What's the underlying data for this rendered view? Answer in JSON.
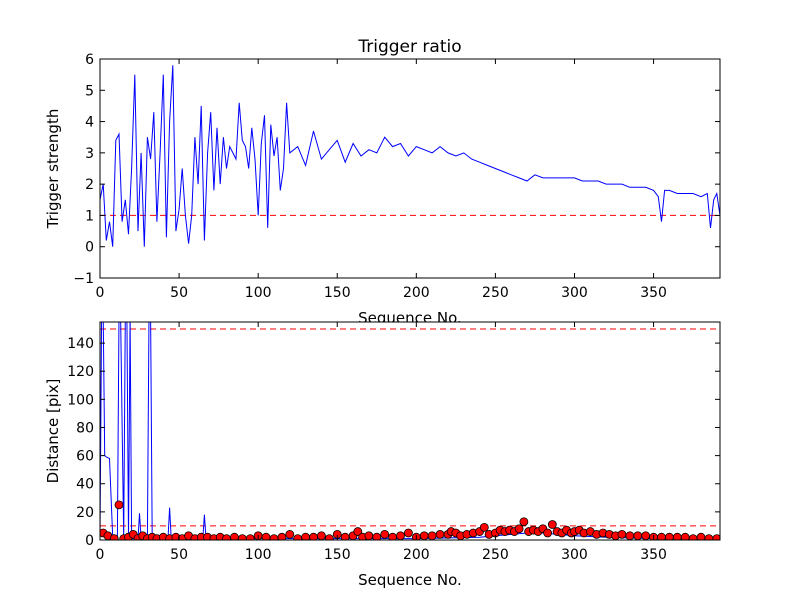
{
  "chart_data": [
    {
      "type": "line",
      "title": "Trigger ratio",
      "xlabel": "Sequence No.",
      "ylabel": "Trigger strength",
      "xlim": [
        0,
        392
      ],
      "ylim": [
        -1,
        6
      ],
      "xticks": [
        "0",
        "50",
        "100",
        "150",
        "200",
        "250",
        "300",
        "350"
      ],
      "yticks": [
        "−1",
        "0",
        "1",
        "2",
        "3",
        "4",
        "5",
        "6"
      ],
      "grid": false,
      "reference_lines": [
        {
          "y": 1,
          "color": "#ff0000",
          "style": "dashed"
        }
      ],
      "series": [
        {
          "color": "#0000ff",
          "x": [
            0,
            2,
            4,
            6,
            8,
            10,
            12,
            14,
            16,
            18,
            20,
            22,
            24,
            26,
            28,
            30,
            32,
            34,
            36,
            38,
            40,
            42,
            44,
            46,
            48,
            50,
            52,
            54,
            56,
            58,
            60,
            62,
            64,
            66,
            68,
            70,
            72,
            74,
            76,
            78,
            80,
            82,
            84,
            86,
            88,
            90,
            92,
            94,
            96,
            98,
            100,
            102,
            104,
            106,
            108,
            110,
            112,
            114,
            116,
            118,
            120,
            125,
            130,
            135,
            140,
            145,
            150,
            155,
            160,
            165,
            170,
            175,
            180,
            185,
            190,
            195,
            200,
            205,
            210,
            215,
            220,
            225,
            230,
            235,
            240,
            245,
            250,
            255,
            260,
            265,
            270,
            275,
            280,
            285,
            290,
            295,
            300,
            305,
            310,
            315,
            320,
            325,
            330,
            335,
            340,
            345,
            350,
            353,
            355,
            357,
            360,
            365,
            370,
            375,
            380,
            384,
            386,
            388,
            390,
            392
          ],
          "values": [
            1.5,
            2.0,
            0.2,
            0.8,
            0.0,
            3.4,
            3.6,
            0.8,
            1.5,
            0.4,
            2.5,
            5.5,
            0.5,
            3.0,
            0.0,
            3.5,
            2.8,
            4.3,
            0.8,
            3.0,
            5.5,
            0.3,
            4.0,
            5.8,
            0.5,
            1.2,
            2.5,
            1.0,
            0.1,
            1.0,
            3.5,
            2.0,
            4.5,
            0.2,
            3.0,
            4.3,
            1.8,
            3.8,
            2.0,
            3.5,
            2.5,
            3.2,
            3.0,
            2.8,
            4.6,
            3.4,
            3.2,
            2.5,
            3.8,
            2.8,
            1.0,
            3.3,
            4.2,
            0.6,
            3.9,
            2.9,
            3.5,
            1.8,
            2.5,
            4.6,
            3.0,
            3.2,
            2.6,
            3.7,
            2.8,
            3.1,
            3.4,
            2.7,
            3.3,
            2.9,
            3.1,
            3.0,
            3.5,
            3.2,
            3.3,
            2.9,
            3.2,
            3.1,
            3.0,
            3.2,
            3.0,
            2.9,
            3.0,
            2.8,
            2.7,
            2.6,
            2.5,
            2.4,
            2.3,
            2.2,
            2.1,
            2.3,
            2.2,
            2.2,
            2.2,
            2.2,
            2.2,
            2.1,
            2.1,
            2.1,
            2.0,
            2.0,
            2.0,
            1.9,
            1.9,
            1.9,
            1.8,
            1.6,
            0.8,
            1.8,
            1.8,
            1.7,
            1.7,
            1.7,
            1.6,
            1.7,
            0.6,
            1.5,
            1.7,
            1.0
          ]
        }
      ]
    },
    {
      "type": "line",
      "xlabel": "Sequence No.",
      "ylabel": "Distance [pix]",
      "xlim": [
        0,
        392
      ],
      "ylim": [
        0,
        155
      ],
      "xticks": [
        "0",
        "50",
        "100",
        "150",
        "200",
        "250",
        "300",
        "350"
      ],
      "yticks": [
        "0",
        "20",
        "40",
        "60",
        "80",
        "100",
        "120",
        "140"
      ],
      "grid": false,
      "reference_lines": [
        {
          "y": 10,
          "color": "#ff0000",
          "style": "dashed"
        },
        {
          "y": 150,
          "color": "#ff0000",
          "style": "dashed"
        }
      ],
      "series": [
        {
          "type": "line",
          "color": "#0000ff",
          "x": [
            0,
            1,
            2,
            3,
            4,
            6,
            8,
            9,
            10,
            11,
            12,
            13,
            15,
            16,
            17,
            18,
            19,
            20,
            24,
            25,
            26,
            30,
            31,
            32,
            33,
            35,
            43,
            44,
            45,
            46,
            65,
            66,
            67,
            68,
            80,
            100,
            150,
            200,
            240,
            250,
            260,
            270,
            280,
            290,
            300,
            320,
            350,
            392
          ],
          "values": [
            1,
            160,
            160,
            60,
            59,
            58,
            2,
            1,
            1,
            2,
            160,
            160,
            1,
            160,
            160,
            1,
            160,
            1,
            1,
            19,
            1,
            1,
            160,
            160,
            1,
            1,
            1,
            23,
            1,
            1,
            1,
            18,
            1,
            1,
            1,
            1,
            1,
            1,
            2,
            3,
            4,
            5,
            5,
            4,
            3,
            2,
            1,
            1
          ]
        },
        {
          "type": "scatter",
          "color": "#ff0000",
          "marker": "circle",
          "x": [
            2,
            5,
            9,
            12,
            15,
            18,
            21,
            24,
            27,
            30,
            33,
            36,
            40,
            44,
            48,
            52,
            56,
            60,
            64,
            68,
            72,
            76,
            80,
            85,
            90,
            95,
            100,
            105,
            110,
            115,
            120,
            125,
            130,
            135,
            140,
            145,
            150,
            155,
            160,
            163,
            166,
            170,
            175,
            180,
            185,
            190,
            195,
            200,
            205,
            210,
            215,
            220,
            222,
            225,
            228,
            232,
            236,
            240,
            243,
            246,
            250,
            253,
            256,
            259,
            262,
            265,
            268,
            271,
            274,
            277,
            280,
            283,
            286,
            289,
            292,
            295,
            298,
            300,
            303,
            306,
            310,
            314,
            318,
            322,
            326,
            330,
            335,
            340,
            345,
            350,
            355,
            360,
            365,
            370,
            375,
            380,
            385,
            390
          ],
          "values": [
            5,
            3,
            1,
            25,
            1,
            2,
            4,
            1,
            3,
            1,
            2,
            1,
            2,
            1,
            2,
            1,
            3,
            1,
            2,
            2,
            1,
            2,
            1,
            2,
            1,
            1,
            3,
            2,
            1,
            2,
            4,
            1,
            2,
            2,
            3,
            1,
            4,
            2,
            3,
            6,
            2,
            3,
            2,
            4,
            2,
            3,
            5,
            2,
            3,
            3,
            4,
            4,
            6,
            5,
            3,
            4,
            5,
            6,
            9,
            4,
            5,
            7,
            6,
            7,
            6,
            8,
            13,
            6,
            7,
            6,
            8,
            5,
            11,
            6,
            5,
            7,
            5,
            6,
            7,
            5,
            6,
            4,
            5,
            4,
            3,
            4,
            3,
            3,
            3,
            2,
            2,
            2,
            2,
            2,
            1,
            2,
            1,
            1
          ]
        }
      ]
    }
  ]
}
